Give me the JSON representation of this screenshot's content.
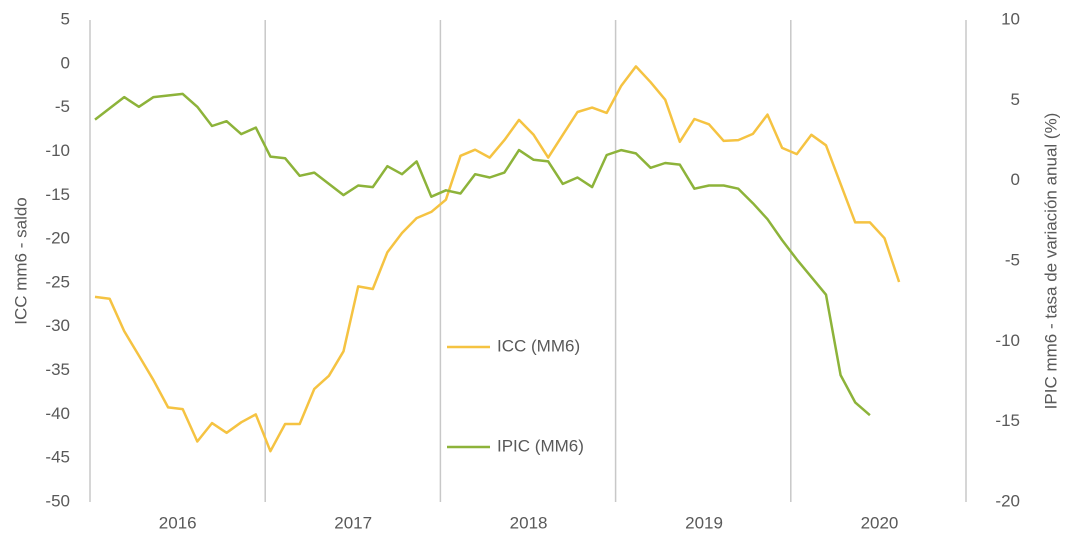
{
  "chart_data": {
    "type": "line",
    "y_label": "ICC mm6 - saldo",
    "y2_label": "IPIC mm6 - tasa de variación anual (%)",
    "categories": [
      null,
      null,
      null,
      null,
      null,
      null,
      "2016",
      null,
      null,
      null,
      null,
      null,
      null,
      null,
      null,
      null,
      null,
      null,
      "2017",
      null,
      null,
      null,
      null,
      null,
      null,
      null,
      null,
      null,
      null,
      null,
      "2018",
      null,
      null,
      null,
      null,
      null,
      null,
      null,
      null,
      null,
      null,
      null,
      "2019",
      null,
      null,
      null,
      null,
      null,
      null,
      null,
      null,
      null,
      null,
      null,
      "2020",
      null
    ],
    "series": [
      {
        "name": "ICC (MM6)",
        "color": "#f5c342",
        "values": [
          -26.6,
          -26.8,
          -30.5,
          -33.3,
          -36.1,
          -39.2,
          -39.4,
          -43.1,
          -41,
          -42.1,
          -40.9,
          -40,
          -44.2,
          -41.1,
          -41.1,
          -37.1,
          -35.6,
          -32.8,
          -25.4,
          -25.7,
          -21.5,
          -19.3,
          -17.6,
          -16.9,
          -15.5,
          -10.5,
          -9.8,
          -10.7,
          -8.7,
          -6.4,
          -8.1,
          -10.7,
          -8.1,
          -5.5,
          -5,
          -5.6,
          -2.5,
          -0.3,
          -2.1,
          -4.1,
          -8.9,
          -6.3,
          -6.9,
          -8.8,
          -8.7,
          -8,
          -5.8,
          -9.6,
          -10.3,
          -8.1,
          -9.3,
          -13.7,
          -18.1,
          -18.1,
          -19.9,
          -24.9
        ]
      },
      {
        "name": "IPIC (MM6)",
        "color": "#8db33a",
        "axis": "y2",
        "values": [
          3.8,
          4.5,
          5.2,
          4.6,
          5.2,
          5.3,
          5.4,
          4.6,
          3.4,
          3.7,
          2.9,
          3.3,
          1.5,
          1.4,
          0.3,
          0.5,
          -0.2,
          -0.9,
          -0.3,
          -0.4,
          0.9,
          0.4,
          1.2,
          -1,
          -0.6,
          -0.8,
          0.4,
          0.2,
          0.5,
          1.9,
          1.3,
          1.2,
          -0.2,
          0.2,
          -0.4,
          1.6,
          1.9,
          1.7,
          0.8,
          1.1,
          1,
          -0.5,
          -0.3,
          -0.3,
          -0.5,
          -1.4,
          -2.4,
          -3.7,
          -4.9,
          -6,
          -7.1,
          -12.1,
          -13.8,
          -14.6,
          null,
          null
        ]
      }
    ],
    "ylim": [
      -50,
      5
    ],
    "yticks": [
      5,
      0,
      -5,
      -10,
      -15,
      -20,
      -25,
      -30,
      -35,
      -40,
      -45,
      -50
    ],
    "y2lim": [
      -20,
      10
    ],
    "y2ticks": [
      10,
      5,
      0,
      -5,
      -10,
      -15,
      -20
    ],
    "legend": "center"
  }
}
